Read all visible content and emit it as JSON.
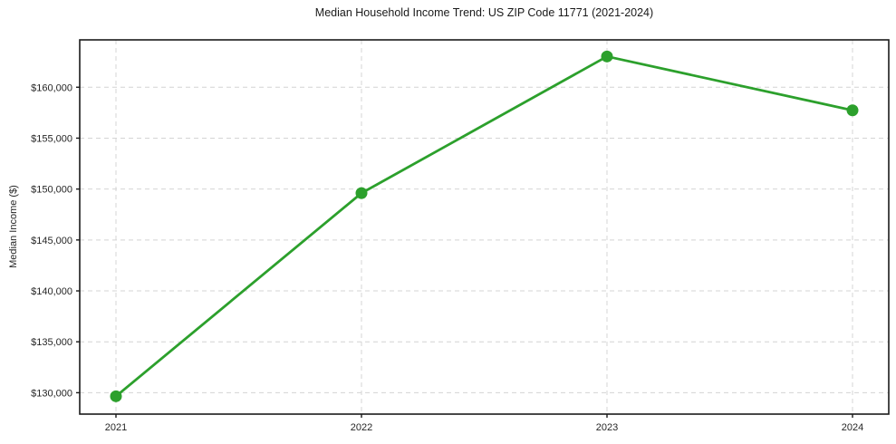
{
  "chart_data": {
    "type": "line",
    "title": "Median Household Income Trend: US ZIP Code 11771 (2021-2024)",
    "xlabel": "",
    "ylabel": "Median Income ($)",
    "categories": [
      "2021",
      "2022",
      "2023",
      "2024"
    ],
    "values": [
      129650,
      149600,
      163020,
      157730
    ],
    "y_ticks": {
      "values": [
        130000,
        135000,
        140000,
        145000,
        150000,
        155000,
        160000
      ],
      "labels": [
        "$130,000",
        "$135,000",
        "$140,000",
        "$145,000",
        "$150,000",
        "$155,000",
        "$160,000"
      ]
    },
    "ylim": [
      127900,
      164650
    ],
    "grid": {
      "visible": true,
      "style": "dashed"
    },
    "legend": "none",
    "line": {
      "color": "#2ca02c",
      "width": 2.8,
      "marker": "circle",
      "marker_radius": 6.5
    },
    "colors": {
      "line": "#2ca02c",
      "axis": "#1a1a1a",
      "tick_text": "#262626",
      "grid": "#d4d4d4",
      "background": "#ffffff"
    }
  }
}
